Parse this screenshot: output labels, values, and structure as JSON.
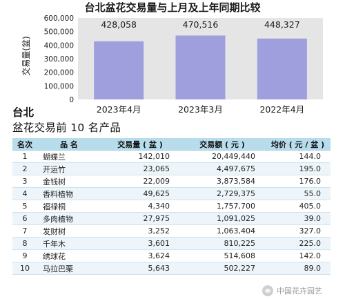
{
  "chart_data": {
    "type": "bar",
    "title": "台北盆花交易量与上月及上年同期比较",
    "ylabel": "交易量(盆)",
    "xlabel": "",
    "categories": [
      "2023年4月",
      "2023年3月",
      "2022年4月"
    ],
    "values": [
      428058,
      470516,
      448327
    ],
    "value_labels": [
      "428,058",
      "470,516",
      "448,327"
    ],
    "ylim": [
      0,
      600000
    ],
    "y_ticks": [
      0,
      100000,
      200000,
      300000,
      400000,
      500000,
      600000
    ],
    "y_tick_labels": [
      "0",
      "100,000",
      "200,000",
      "300,000",
      "400,000",
      "500,000",
      "600,000"
    ],
    "grid": false,
    "bar_color": "#9f9fde",
    "plot_bg": "#e5e5e5"
  },
  "region_title": "台北",
  "table": {
    "title": "盆花交易前 10 名产品",
    "columns": [
      "名次",
      "品 名",
      "交易量 ( 盆 )",
      "交易额 ( 元 )",
      "均价 ( 元 / 盆 )"
    ],
    "rows": [
      {
        "rank": "1",
        "name": "蝴蝶兰",
        "qty": "142,010",
        "amount": "20,449,440",
        "price": "144.0"
      },
      {
        "rank": "2",
        "name": "开运竹",
        "qty": "23,065",
        "amount": "4,497,675",
        "price": "195.0"
      },
      {
        "rank": "3",
        "name": "金钱树",
        "qty": "22,009",
        "amount": "3,873,584",
        "price": "176.0"
      },
      {
        "rank": "4",
        "name": "香料植物",
        "qty": "49,625",
        "amount": "2,729,375",
        "price": "55.0"
      },
      {
        "rank": "5",
        "name": "福禄桐",
        "qty": "4,340",
        "amount": "1,757,700",
        "price": "405.0"
      },
      {
        "rank": "6",
        "name": "多肉植物",
        "qty": "27,975",
        "amount": "1,091,025",
        "price": "39.0"
      },
      {
        "rank": "7",
        "name": "发财树",
        "qty": "3,252",
        "amount": "1,063,404",
        "price": "327.0"
      },
      {
        "rank": "8",
        "name": "千年木",
        "qty": "3,601",
        "amount": "810,225",
        "price": "225.0"
      },
      {
        "rank": "9",
        "name": "绣球花",
        "qty": "3,624",
        "amount": "514,608",
        "price": "142.0"
      },
      {
        "rank": "10",
        "name": "马拉巴栗",
        "qty": "5,643",
        "amount": "502,227",
        "price": "89.0"
      }
    ]
  },
  "watermark": {
    "text": "中国花卉园艺",
    "icon": "wechat-icon"
  }
}
